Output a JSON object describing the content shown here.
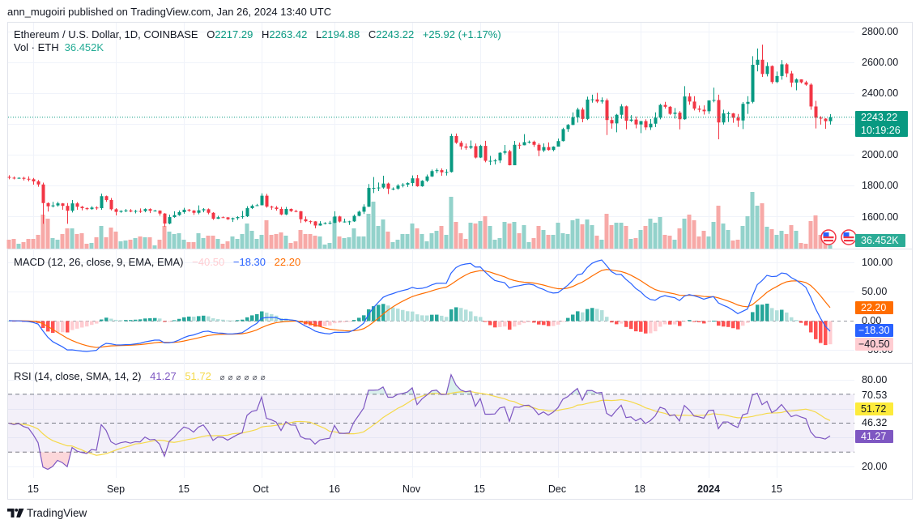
{
  "header": {
    "published": "ann_mugoiri published on TradingView.com, Jan 26, 2024 13:40 UTC"
  },
  "legend": {
    "symbol": "Ethereum / U.S. Dollar, 1D, COINBASE",
    "o_label": "O",
    "o": "2217.29",
    "h_label": "H",
    "h": "2263.42",
    "l_label": "L",
    "l": "2194.88",
    "c_label": "C",
    "c": "2243.22",
    "change": "+25.92 (+1.17%)",
    "vol_label": "Vol · ETH",
    "vol": "36.452K"
  },
  "price_scale": {
    "labels": [
      "2800.00",
      "2600.00",
      "2400.00",
      "2000.00",
      "1800.00",
      "1600.00"
    ],
    "last_price": "2243.22",
    "countdown": "10:19:26",
    "volume_label": "36.452K"
  },
  "macd": {
    "title": "MACD (12, 26, close, 9, EMA, EMA)",
    "hist": "−40.50",
    "macd": "−18.30",
    "signal": "22.20",
    "scale_labels": [
      "100.00",
      "50.00",
      "0.00",
      "−50.00"
    ]
  },
  "rsi": {
    "title": "RSI (14, close, SMA, 14, 2)",
    "rsi": "41.27",
    "ma": "51.72",
    "extra": "⌀⌀⌀⌀⌀⌀",
    "scale_labels": [
      "80.00",
      "70.53",
      "46.32",
      "20.00"
    ]
  },
  "time_axis": [
    "15",
    "Sep",
    "15",
    "Oct",
    "16",
    "Nov",
    "15",
    "Dec",
    "18",
    "2024",
    "15"
  ],
  "footer": {
    "brand": "TradingView"
  },
  "colors": {
    "up": "#089981",
    "down": "#f23645",
    "volume_up": "#93d2cb",
    "volume_down": "#f7a9a7",
    "macd_line": "#2962ff",
    "signal_line": "#ff6d00",
    "hist_up_strong": "#26a69a",
    "hist_up_weak": "#b2dfdb",
    "hist_down_strong": "#ff5252",
    "hist_down_weak": "#ffcdd2",
    "rsi_line": "#7e57c2",
    "rsi_ma": "#f5d94a"
  },
  "chart_data": [
    {
      "type": "candlestick",
      "title": "Ethereum / U.S. Dollar, 1D, COINBASE",
      "x_start": "2023-08-10",
      "x_step_days": 1,
      "x_ticks": [
        {
          "label": "15",
          "date": "2023-08-15"
        },
        {
          "label": "Sep",
          "date": "2023-09-01"
        },
        {
          "label": "15",
          "date": "2023-09-15"
        },
        {
          "label": "Oct",
          "date": "2023-10-01"
        },
        {
          "label": "16",
          "date": "2023-10-16"
        },
        {
          "label": "Nov",
          "date": "2023-11-01"
        },
        {
          "label": "15",
          "date": "2023-11-15"
        },
        {
          "label": "Dec",
          "date": "2023-12-01"
        },
        {
          "label": "18",
          "date": "2023-12-18"
        },
        {
          "label": "2024",
          "date": "2024-01-01"
        },
        {
          "label": "15",
          "date": "2024-01-15"
        }
      ],
      "ylim": [
        1389,
        2863
      ],
      "yticks": [
        1600,
        1800,
        2000,
        2200,
        2400,
        2600,
        2800
      ],
      "ylabel": "USD",
      "volume_unit": "K ETH",
      "volume_ylim": [
        0,
        2240
      ],
      "open": [
        1855,
        1850,
        1847,
        1849,
        1843,
        1840,
        1826,
        1806,
        1685,
        1664,
        1670,
        1683,
        1667,
        1635,
        1683,
        1661,
        1652,
        1646,
        1656,
        1652,
        1730,
        1705,
        1645,
        1628,
        1634,
        1637,
        1630,
        1634,
        1633,
        1646,
        1635,
        1636,
        1617,
        1552,
        1594,
        1607,
        1626,
        1642,
        1636,
        1622,
        1638,
        1645,
        1622,
        1583,
        1593,
        1592,
        1580,
        1587,
        1594,
        1599,
        1652,
        1667,
        1671,
        1733,
        1662,
        1656,
        1647,
        1611,
        1647,
        1633,
        1632,
        1580,
        1567,
        1566,
        1539,
        1552,
        1555,
        1557,
        1598,
        1565,
        1565,
        1566,
        1602,
        1629,
        1661,
        1784,
        1784,
        1786,
        1812,
        1779,
        1779,
        1799,
        1805,
        1815,
        1846,
        1794,
        1830,
        1858,
        1893,
        1899,
        1885,
        1887,
        2121,
        2077,
        2053,
        2045,
        2055,
        1981,
        2057,
        1960,
        1960,
        1962,
        2012,
        2022,
        1931,
        2064,
        2061,
        2081,
        2084,
        2064,
        2027,
        2049,
        2030,
        2052,
        2088,
        2166,
        2193,
        2243,
        2293,
        2232,
        2358,
        2359,
        2345,
        2353,
        2225,
        2203,
        2259,
        2314,
        2220,
        2228,
        2196,
        2218,
        2177,
        2201,
        2240,
        2323,
        2311,
        2265,
        2273,
        2230,
        2378,
        2345,
        2299,
        2292,
        2282,
        2352,
        2355,
        2209,
        2268,
        2268,
        2240,
        2222,
        2330,
        2343,
        2584,
        2617,
        2524,
        2576,
        2472,
        2511,
        2587,
        2528,
        2468,
        2489,
        2470,
        2455,
        2313,
        2240,
        2234,
        2217.29
      ],
      "high": [
        1866,
        1858,
        1853,
        1856,
        1859,
        1848,
        1835,
        1818,
        1690,
        1693,
        1693,
        1685,
        1685,
        1705,
        1691,
        1667,
        1657,
        1665,
        1664,
        1746,
        1734,
        1718,
        1652,
        1638,
        1647,
        1646,
        1641,
        1650,
        1651,
        1651,
        1641,
        1638,
        1620,
        1610,
        1632,
        1637,
        1654,
        1647,
        1640,
        1670,
        1652,
        1650,
        1626,
        1602,
        1598,
        1594,
        1591,
        1600,
        1634,
        1665,
        1676,
        1680,
        1748,
        1745,
        1668,
        1666,
        1660,
        1660,
        1650,
        1642,
        1634,
        1598,
        1572,
        1567,
        1567,
        1561,
        1569,
        1632,
        1602,
        1584,
        1570,
        1611,
        1636,
        1677,
        1809,
        1854,
        1819,
        1863,
        1818,
        1787,
        1808,
        1815,
        1820,
        1865,
        1868,
        1834,
        1871,
        1903,
        1910,
        1911,
        1904,
        2135,
        2137,
        2090,
        2072,
        2092,
        2072,
        2064,
        2090,
        1992,
        1972,
        2016,
        2063,
        2031,
        2089,
        2078,
        2133,
        2092,
        2091,
        2074,
        2073,
        2079,
        2054,
        2104,
        2175,
        2200,
        2275,
        2305,
        2306,
        2377,
        2390,
        2402,
        2372,
        2365,
        2244,
        2265,
        2328,
        2319,
        2257,
        2248,
        2219,
        2230,
        2231,
        2275,
        2330,
        2343,
        2316,
        2303,
        2283,
        2445,
        2400,
        2380,
        2319,
        2320,
        2353,
        2435,
        2390,
        2292,
        2280,
        2271,
        2264,
        2342,
        2380,
        2640,
        2690,
        2715,
        2600,
        2580,
        2540,
        2615,
        2595,
        2544,
        2496,
        2490,
        2480,
        2464,
        2350,
        2250,
        2237,
        2263.42
      ],
      "low": [
        1840,
        1839,
        1843,
        1832,
        1826,
        1805,
        1791,
        1550,
        1630,
        1657,
        1662,
        1642,
        1550,
        1624,
        1641,
        1638,
        1640,
        1642,
        1641,
        1642,
        1693,
        1637,
        1605,
        1622,
        1626,
        1625,
        1618,
        1621,
        1625,
        1620,
        1630,
        1603,
        1531,
        1547,
        1590,
        1602,
        1616,
        1628,
        1608,
        1612,
        1625,
        1612,
        1576,
        1582,
        1590,
        1575,
        1562,
        1575,
        1584,
        1594,
        1646,
        1666,
        1670,
        1655,
        1641,
        1636,
        1606,
        1607,
        1627,
        1625,
        1556,
        1561,
        1550,
        1521,
        1538,
        1546,
        1546,
        1554,
        1559,
        1558,
        1543,
        1563,
        1599,
        1614,
        1660,
        1750,
        1763,
        1778,
        1744,
        1768,
        1772,
        1787,
        1790,
        1795,
        1791,
        1791,
        1822,
        1855,
        1879,
        1862,
        1864,
        1883,
        2070,
        2033,
        2032,
        2036,
        1975,
        1978,
        1950,
        1932,
        1936,
        1946,
        2001,
        1930,
        1931,
        2037,
        2060,
        2072,
        2050,
        1990,
        2017,
        2026,
        2022,
        2052,
        2085,
        2148,
        2192,
        2208,
        2210,
        2225,
        2338,
        2335,
        2332,
        2127,
        2169,
        2145,
        2233,
        2165,
        2212,
        2171,
        2140,
        2160,
        2160,
        2179,
        2229,
        2299,
        2258,
        2234,
        2164,
        2227,
        2324,
        2287,
        2276,
        2260,
        2265,
        2340,
        2100,
        2195,
        2212,
        2207,
        2180,
        2166,
        2265,
        2333,
        2541,
        2505,
        2508,
        2460,
        2465,
        2487,
        2504,
        2440,
        2418,
        2463,
        2448,
        2292,
        2170,
        2195,
        2168,
        2194.88
      ],
      "close": [
        1850,
        1847,
        1849,
        1843,
        1840,
        1826,
        1806,
        1685,
        1664,
        1670,
        1683,
        1667,
        1635,
        1683,
        1661,
        1652,
        1646,
        1656,
        1652,
        1730,
        1705,
        1645,
        1628,
        1634,
        1637,
        1630,
        1634,
        1633,
        1646,
        1635,
        1636,
        1617,
        1552,
        1594,
        1607,
        1626,
        1642,
        1636,
        1622,
        1638,
        1645,
        1622,
        1583,
        1593,
        1592,
        1580,
        1587,
        1594,
        1599,
        1652,
        1667,
        1671,
        1733,
        1662,
        1656,
        1647,
        1611,
        1647,
        1633,
        1632,
        1580,
        1567,
        1566,
        1539,
        1552,
        1555,
        1557,
        1598,
        1565,
        1565,
        1566,
        1602,
        1629,
        1661,
        1784,
        1784,
        1786,
        1812,
        1779,
        1779,
        1799,
        1805,
        1815,
        1846,
        1794,
        1830,
        1858,
        1893,
        1899,
        1885,
        1887,
        2121,
        2077,
        2053,
        2045,
        2055,
        1981,
        2057,
        1960,
        1960,
        1962,
        2012,
        2022,
        1931,
        2064,
        2061,
        2081,
        2084,
        2064,
        2027,
        2049,
        2030,
        2052,
        2088,
        2166,
        2193,
        2243,
        2293,
        2232,
        2358,
        2359,
        2345,
        2353,
        2225,
        2203,
        2259,
        2314,
        2220,
        2228,
        2196,
        2218,
        2177,
        2201,
        2240,
        2323,
        2311,
        2265,
        2273,
        2230,
        2378,
        2345,
        2299,
        2292,
        2282,
        2352,
        2355,
        2209,
        2268,
        2268,
        2240,
        2222,
        2330,
        2343,
        2584,
        2617,
        2524,
        2576,
        2472,
        2511,
        2587,
        2528,
        2468,
        2489,
        2470,
        2455,
        2313,
        2240,
        2234,
        2217.29,
        2243.22
      ],
      "volume": [
        88,
        96,
        48,
        64,
        96,
        96,
        136,
        336,
        296,
        104,
        88,
        144,
        200,
        200,
        144,
        152,
        48,
        56,
        112,
        224,
        112,
        208,
        168,
        72,
        80,
        88,
        104,
        120,
        112,
        112,
        32,
        88,
        224,
        168,
        144,
        152,
        88,
        64,
        64,
        152,
        104,
        128,
        128,
        96,
        48,
        72,
        120,
        96,
        144,
        248,
        176,
        96,
        136,
        280,
        136,
        144,
        160,
        128,
        56,
        72,
        184,
        144,
        144,
        128,
        120,
        40,
        56,
        312,
        120,
        104,
        112,
        200,
        120,
        120,
        344,
        464,
        224,
        288,
        168,
        64,
        88,
        144,
        144,
        248,
        200,
        144,
        72,
        152,
        176,
        224,
        136,
        512,
        264,
        152,
        96,
        256,
        248,
        272,
        320,
        224,
        88,
        104,
        264,
        248,
        264,
        152,
        232,
        64,
        104,
        224,
        184,
        136,
        136,
        256,
        152,
        144,
        280,
        296,
        240,
        288,
        232,
        128,
        88,
        344,
        232,
        256,
        256,
        224,
        96,
        104,
        184,
        224,
        296,
        256,
        312,
        136,
        128,
        88,
        200,
        296,
        336,
        280,
        120,
        176,
        120,
        264,
        424,
        248,
        184,
        80,
        88,
        224,
        320,
        560,
        424,
        448,
        216,
        192,
        136,
        176,
        144,
        232,
        176,
        56,
        48,
        272,
        328,
        136,
        160,
        36.452
      ],
      "last_price": 2243.22
    },
    {
      "type": "line",
      "title": "MACD (12, 26, close, 9, EMA, EMA)",
      "params": {
        "fast": 12,
        "slow": 26,
        "signal": 9,
        "source": "close"
      },
      "series": [
        {
          "name": "Histogram",
          "style": "bar",
          "last": -40.5
        },
        {
          "name": "MACD",
          "style": "line",
          "last": -18.3
        },
        {
          "name": "Signal",
          "style": "line",
          "last": 22.2
        }
      ],
      "ylim": [
        -72.2,
        122.2
      ],
      "yticks": [
        -50,
        50,
        100
      ],
      "zero_line": 0
    },
    {
      "type": "line",
      "title": "RSI (14, close, SMA, 14, 2)",
      "params": {
        "length": 14,
        "source": "close",
        "ma_type": "SMA",
        "ma_length": 14,
        "bb_mult": 2
      },
      "series": [
        {
          "name": "RSI",
          "last": 41.27
        },
        {
          "name": "RSI-based MA",
          "last": 51.72
        }
      ],
      "ylim": [
        12.2,
        91.2
      ],
      "yticks": [
        20,
        40,
        60,
        80
      ],
      "bands": {
        "upper": 70,
        "middle": 50,
        "lower": 30
      },
      "band_labels": [
        70.53,
        46.32
      ]
    }
  ]
}
